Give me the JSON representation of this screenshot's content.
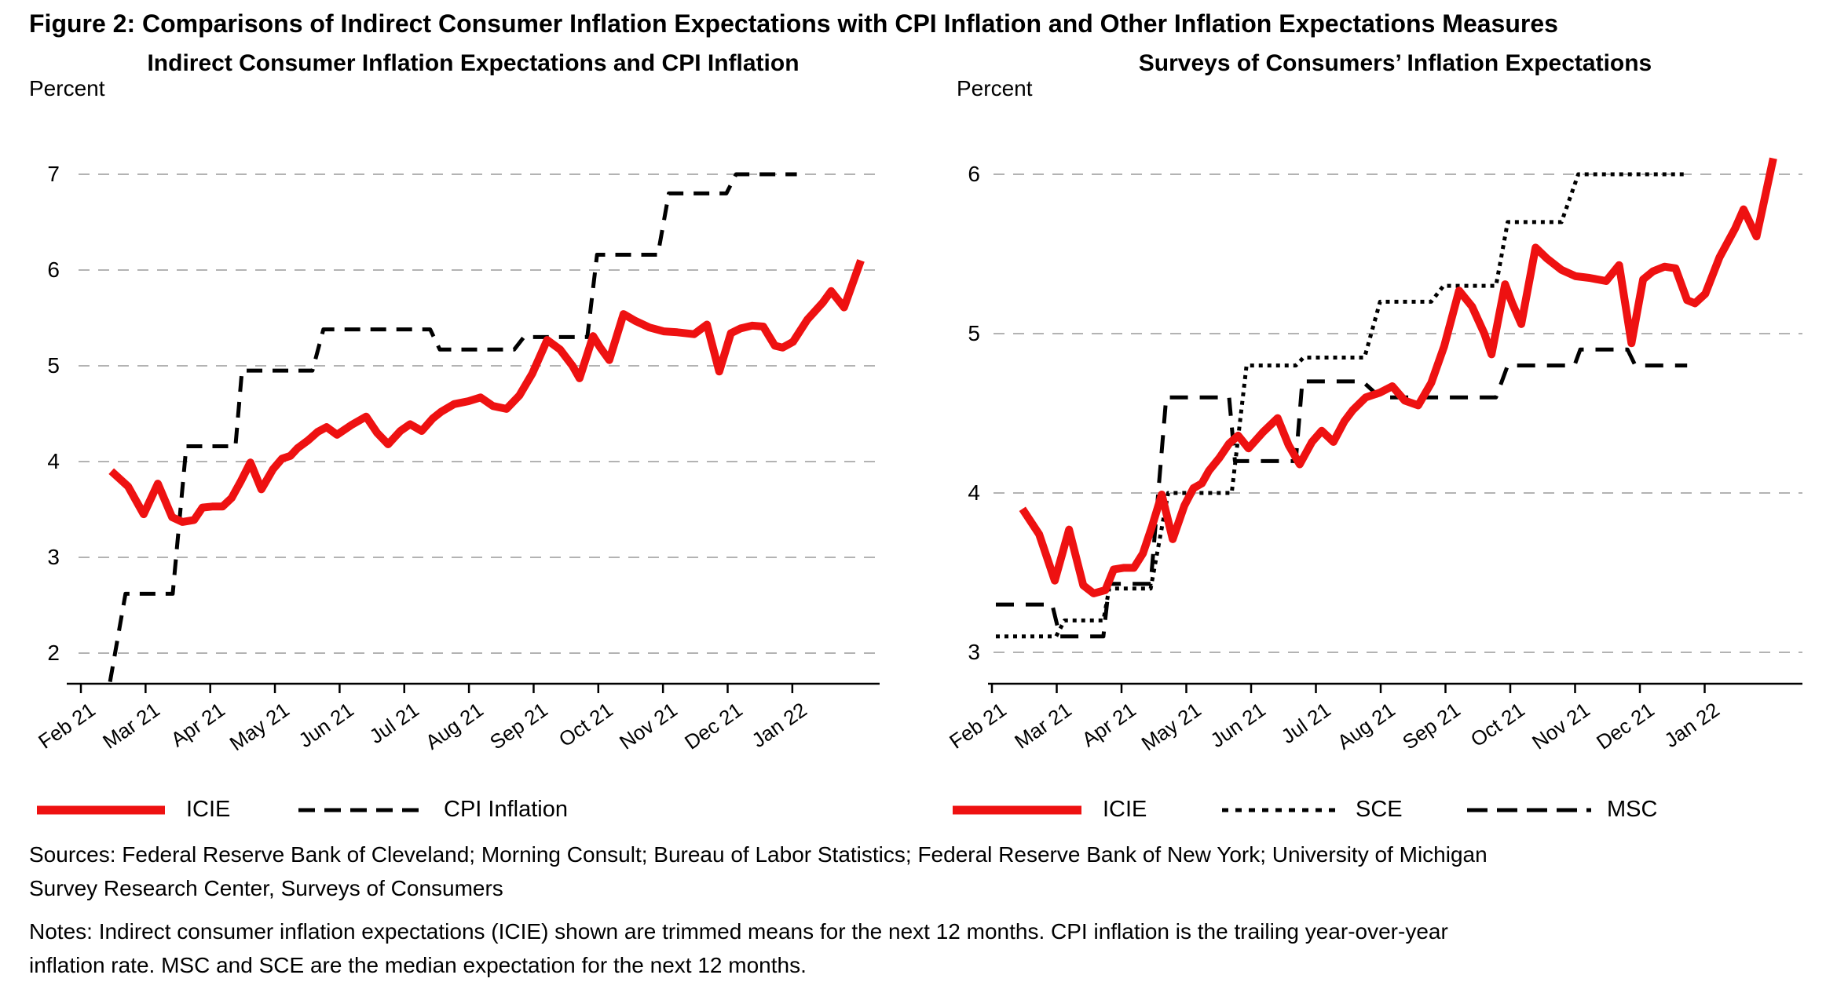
{
  "figure_title": "Figure 2: Comparisons of Indirect Consumer Inflation Expectations with CPI Inflation and Other Inflation Expectations Measures",
  "colors": {
    "icie_red": "#ee1111",
    "line_black": "#000000",
    "grid_gray": "#b3b3b3",
    "text_black": "#000000"
  },
  "months": [
    "Feb 21",
    "Mar 21",
    "Apr 21",
    "May 21",
    "Jun 21",
    "Jul 21",
    "Aug 21",
    "Sep 21",
    "Oct 21",
    "Nov 21",
    "Dec 21",
    "Jan 22"
  ],
  "panels": [
    {
      "title": "Indirect Consumer Inflation Expectations and CPI Inflation",
      "y_axis_label": "Percent",
      "y_ticks": [
        "7",
        "6",
        "5",
        "4",
        "3",
        "2"
      ],
      "legend": [
        {
          "label": "ICIE",
          "style": "solid-red"
        },
        {
          "label": "CPI Inflation",
          "style": "dashed-black"
        }
      ]
    },
    {
      "title": "Surveys of Consumers’ Inflation Expectations",
      "y_axis_label": "Percent",
      "y_ticks": [
        "6",
        "5",
        "4",
        "3"
      ],
      "legend": [
        {
          "label": "ICIE",
          "style": "solid-red"
        },
        {
          "label": "SCE",
          "style": "dotted-black"
        },
        {
          "label": "MSC",
          "style": "long-dashed-black"
        }
      ]
    }
  ],
  "chart_data": [
    {
      "type": "line",
      "title": "Indirect Consumer Inflation Expectations and CPI Inflation",
      "xlabel": "",
      "ylabel": "Percent",
      "x_unit": "months since Feb 2021 tick (0 = Feb 21, 11 = Jan 22)",
      "categories": [
        "Feb 21",
        "Mar 21",
        "Apr 21",
        "May 21",
        "Jun 21",
        "Jul 21",
        "Aug 21",
        "Sep 21",
        "Oct 21",
        "Nov 21",
        "Dec 21",
        "Jan 22"
      ],
      "ylim": [
        1.6,
        7.35
      ],
      "grid": "horizontal-dashed",
      "legend_position": "below",
      "series": [
        {
          "name": "ICIE",
          "kind": "line",
          "style": "solid-red",
          "points": [
            [
              0.47,
              3.9
            ],
            [
              0.73,
              3.74
            ],
            [
              0.97,
              3.45
            ],
            [
              1.19,
              3.77
            ],
            [
              1.41,
              3.42
            ],
            [
              1.57,
              3.37
            ],
            [
              1.75,
              3.39
            ],
            [
              1.88,
              3.52
            ],
            [
              2.03,
              3.53
            ],
            [
              2.19,
              3.53
            ],
            [
              2.33,
              3.62
            ],
            [
              2.47,
              3.79
            ],
            [
              2.62,
              3.99
            ],
            [
              2.79,
              3.71
            ],
            [
              2.97,
              3.92
            ],
            [
              3.11,
              4.03
            ],
            [
              3.24,
              4.06
            ],
            [
              3.35,
              4.14
            ],
            [
              3.51,
              4.22
            ],
            [
              3.66,
              4.31
            ],
            [
              3.8,
              4.36
            ],
            [
              3.96,
              4.28
            ],
            [
              4.18,
              4.38
            ],
            [
              4.41,
              4.47
            ],
            [
              4.58,
              4.3
            ],
            [
              4.75,
              4.18
            ],
            [
              4.94,
              4.32
            ],
            [
              5.09,
              4.39
            ],
            [
              5.27,
              4.32
            ],
            [
              5.44,
              4.45
            ],
            [
              5.57,
              4.52
            ],
            [
              5.77,
              4.6
            ],
            [
              5.99,
              4.63
            ],
            [
              6.18,
              4.67
            ],
            [
              6.37,
              4.58
            ],
            [
              6.58,
              4.55
            ],
            [
              6.78,
              4.69
            ],
            [
              6.98,
              4.92
            ],
            [
              7.21,
              5.27
            ],
            [
              7.41,
              5.17
            ],
            [
              7.6,
              5.0
            ],
            [
              7.71,
              4.87
            ],
            [
              7.92,
              5.31
            ],
            [
              8.03,
              5.19
            ],
            [
              8.17,
              5.06
            ],
            [
              8.39,
              5.54
            ],
            [
              8.57,
              5.47
            ],
            [
              8.79,
              5.4
            ],
            [
              9.01,
              5.36
            ],
            [
              9.22,
              5.35
            ],
            [
              9.48,
              5.33
            ],
            [
              9.68,
              5.43
            ],
            [
              9.87,
              4.94
            ],
            [
              10.05,
              5.34
            ],
            [
              10.2,
              5.39
            ],
            [
              10.38,
              5.42
            ],
            [
              10.55,
              5.41
            ],
            [
              10.73,
              5.21
            ],
            [
              10.85,
              5.19
            ],
            [
              11.01,
              5.25
            ],
            [
              11.23,
              5.48
            ],
            [
              11.47,
              5.66
            ],
            [
              11.6,
              5.78
            ],
            [
              11.8,
              5.61
            ],
            [
              12.06,
              6.1
            ]
          ]
        },
        {
          "name": "CPI Inflation",
          "kind": "steps",
          "style": "dashed-black",
          "plateaus": [
            [
              0.45,
              0.45,
              1.7
            ],
            [
              0.69,
              1.42,
              2.62
            ],
            [
              1.63,
              2.39,
              4.16
            ],
            [
              2.49,
              3.58,
              4.95
            ],
            [
              3.75,
              5.4,
              5.38
            ],
            [
              5.55,
              6.7,
              5.17
            ],
            [
              6.85,
              7.83,
              5.3
            ],
            [
              7.98,
              8.92,
              6.16
            ],
            [
              9.09,
              9.98,
              6.8
            ],
            [
              10.13,
              11.07,
              7.0
            ]
          ]
        }
      ]
    },
    {
      "type": "line",
      "title": "Surveys of Consumers’ Inflation Expectations",
      "xlabel": "",
      "ylabel": "Percent",
      "x_unit": "months since Feb 2021 tick (0 = Feb 21, 11 = Jan 22)",
      "categories": [
        "Feb 21",
        "Mar 21",
        "Apr 21",
        "May 21",
        "Jun 21",
        "Jul 21",
        "Aug 21",
        "Sep 21",
        "Oct 21",
        "Nov 21",
        "Dec 21",
        "Jan 22"
      ],
      "ylim": [
        2.8,
        6.4
      ],
      "grid": "horizontal-dashed",
      "legend_position": "below",
      "series": [
        {
          "name": "ICIE",
          "kind": "line",
          "style": "solid-red",
          "points": [
            [
              0.47,
              3.9
            ],
            [
              0.73,
              3.74
            ],
            [
              0.97,
              3.45
            ],
            [
              1.19,
              3.77
            ],
            [
              1.41,
              3.42
            ],
            [
              1.57,
              3.37
            ],
            [
              1.75,
              3.39
            ],
            [
              1.88,
              3.52
            ],
            [
              2.03,
              3.53
            ],
            [
              2.19,
              3.53
            ],
            [
              2.33,
              3.62
            ],
            [
              2.47,
              3.79
            ],
            [
              2.62,
              3.99
            ],
            [
              2.79,
              3.71
            ],
            [
              2.97,
              3.92
            ],
            [
              3.11,
              4.03
            ],
            [
              3.24,
              4.06
            ],
            [
              3.35,
              4.14
            ],
            [
              3.51,
              4.22
            ],
            [
              3.66,
              4.31
            ],
            [
              3.8,
              4.36
            ],
            [
              3.96,
              4.28
            ],
            [
              4.18,
              4.38
            ],
            [
              4.41,
              4.47
            ],
            [
              4.58,
              4.3
            ],
            [
              4.75,
              4.18
            ],
            [
              4.94,
              4.32
            ],
            [
              5.09,
              4.39
            ],
            [
              5.27,
              4.32
            ],
            [
              5.44,
              4.45
            ],
            [
              5.57,
              4.52
            ],
            [
              5.77,
              4.6
            ],
            [
              5.99,
              4.63
            ],
            [
              6.18,
              4.67
            ],
            [
              6.37,
              4.58
            ],
            [
              6.58,
              4.55
            ],
            [
              6.78,
              4.69
            ],
            [
              6.98,
              4.92
            ],
            [
              7.21,
              5.27
            ],
            [
              7.41,
              5.17
            ],
            [
              7.6,
              5.0
            ],
            [
              7.71,
              4.87
            ],
            [
              7.92,
              5.31
            ],
            [
              8.03,
              5.19
            ],
            [
              8.17,
              5.06
            ],
            [
              8.39,
              5.54
            ],
            [
              8.57,
              5.47
            ],
            [
              8.79,
              5.4
            ],
            [
              9.01,
              5.36
            ],
            [
              9.22,
              5.35
            ],
            [
              9.48,
              5.33
            ],
            [
              9.68,
              5.43
            ],
            [
              9.87,
              4.94
            ],
            [
              10.05,
              5.34
            ],
            [
              10.2,
              5.39
            ],
            [
              10.38,
              5.42
            ],
            [
              10.55,
              5.41
            ],
            [
              10.73,
              5.21
            ],
            [
              10.85,
              5.19
            ],
            [
              11.01,
              5.25
            ],
            [
              11.23,
              5.48
            ],
            [
              11.47,
              5.66
            ],
            [
              11.6,
              5.78
            ],
            [
              11.8,
              5.61
            ],
            [
              12.06,
              6.1
            ]
          ]
        },
        {
          "name": "SCE",
          "kind": "steps",
          "style": "dotted-black",
          "plateaus": [
            [
              0.06,
              0.99,
              3.1
            ],
            [
              1.12,
              1.72,
              3.2
            ],
            [
              1.81,
              2.45,
              3.4
            ],
            [
              2.72,
              3.7,
              4.0
            ],
            [
              3.93,
              4.69,
              4.8
            ],
            [
              4.81,
              5.75,
              4.85
            ],
            [
              5.99,
              6.78,
              5.2
            ],
            [
              6.97,
              7.78,
              5.3
            ],
            [
              7.96,
              8.79,
              5.7
            ],
            [
              9.05,
              10.73,
              6.0
            ]
          ]
        },
        {
          "name": "MSC",
          "kind": "steps",
          "style": "long-dashed-black",
          "plateaus": [
            [
              0.06,
              0.93,
              3.3
            ],
            [
              1.05,
              1.72,
              3.1
            ],
            [
              1.81,
              2.45,
              3.43
            ],
            [
              2.69,
              3.66,
              4.6
            ],
            [
              3.75,
              4.69,
              4.2
            ],
            [
              4.79,
              5.72,
              4.7
            ],
            [
              5.99,
              7.78,
              4.6
            ],
            [
              7.96,
              8.99,
              4.8
            ],
            [
              9.08,
              9.81,
              4.9
            ],
            [
              9.93,
              10.73,
              4.8
            ]
          ]
        }
      ]
    }
  ],
  "sources_lines": [
    "Sources: Federal Reserve Bank of Cleveland; Morning Consult; Bureau of Labor Statistics; Federal Reserve Bank of New York; University of Michigan",
    "Survey Research Center, Surveys of Consumers"
  ],
  "notes_lines": [
    "Notes: Indirect consumer inflation expectations (ICIE) shown are trimmed means for the next 12 months. CPI inflation is the trailing year-over-year",
    "inflation rate. MSC and SCE are the median expectation for the next 12 months."
  ]
}
